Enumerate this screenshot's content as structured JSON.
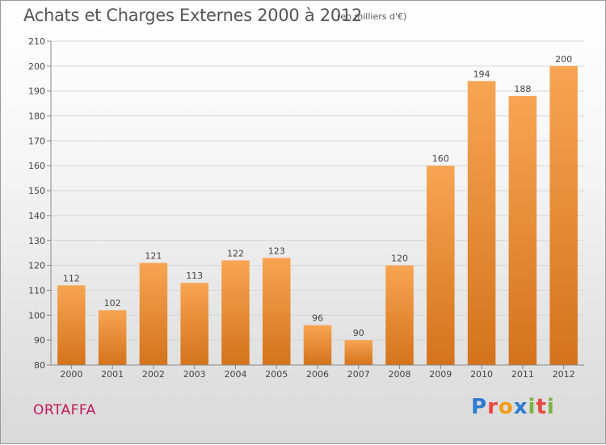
{
  "header": {
    "title": "Achats et Charges Externes 2000 à 2012",
    "unit": "(en milliers d'€)"
  },
  "footer": {
    "place": "ORTAFFA",
    "logo": {
      "letters": [
        "P",
        "r",
        "o",
        "x",
        "i",
        "t",
        "i"
      ],
      "colors": [
        "#2e7bcf",
        "#e8473f",
        "#f39c12",
        "#2e7bcf",
        "#7cb342",
        "#e8473f",
        "#7cb342"
      ]
    }
  },
  "chart_data": {
    "type": "bar",
    "title": "Achats et Charges Externes 2000 à 2012",
    "categories": [
      "2000",
      "2001",
      "2002",
      "2003",
      "2004",
      "2005",
      "2006",
      "2007",
      "2008",
      "2009",
      "2010",
      "2011",
      "2012"
    ],
    "values": [
      112,
      102,
      121,
      113,
      122,
      123,
      96,
      90,
      120,
      160,
      194,
      188,
      200
    ],
    "data_labels": [
      "112",
      "102",
      "121",
      "113",
      "122",
      "123",
      "96",
      "90",
      "120",
      "160",
      "194",
      "188",
      "200"
    ],
    "yticks": [
      80,
      90,
      100,
      110,
      120,
      130,
      140,
      150,
      160,
      170,
      180,
      190,
      200,
      210
    ],
    "ylim": [
      80,
      210
    ],
    "grid": true,
    "colors": {
      "bar_light": "#f7a552",
      "bar_dark": "#d4731b",
      "grid": "#d6d6d6",
      "axis": "#888888",
      "text": "#444444"
    }
  }
}
